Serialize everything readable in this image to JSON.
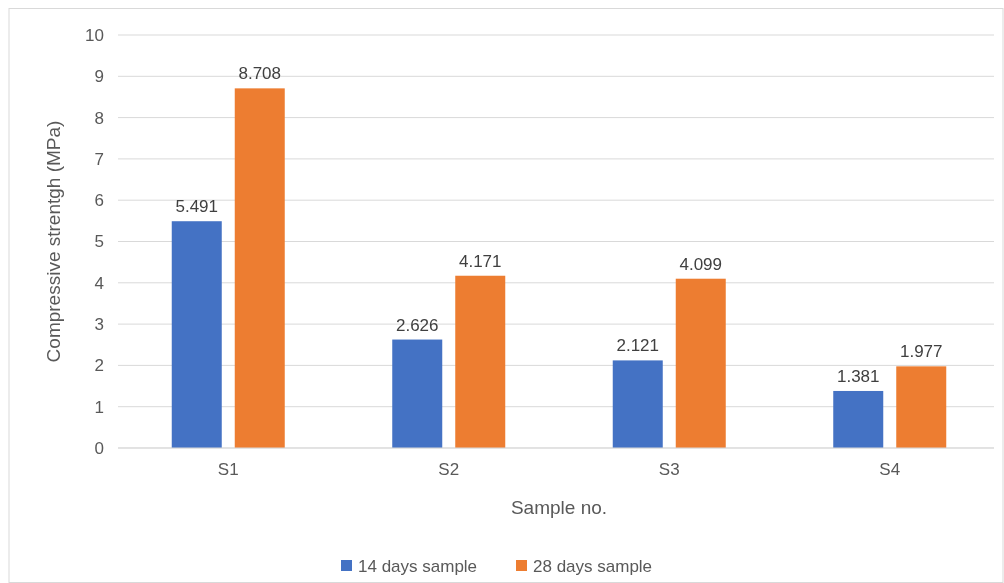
{
  "chart_data": {
    "type": "bar",
    "xlabel": "Sample no.",
    "ylabel": "Compressive strentgh (MPa)",
    "categories": [
      "S1",
      "S2",
      "S3",
      "S4"
    ],
    "series": [
      {
        "name": "14 days sample",
        "color": "#4472c4",
        "values": [
          5.491,
          2.626,
          2.121,
          1.381
        ]
      },
      {
        "name": "28 days sample",
        "color": "#ed7d31",
        "values": [
          8.708,
          4.171,
          4.099,
          1.977
        ]
      }
    ],
    "ylim": [
      0,
      10
    ],
    "yticks": [
      0,
      1,
      2,
      3,
      4,
      5,
      6,
      7,
      8,
      9,
      10
    ],
    "grid": "y",
    "legend": "bottom",
    "data_labels": true
  }
}
